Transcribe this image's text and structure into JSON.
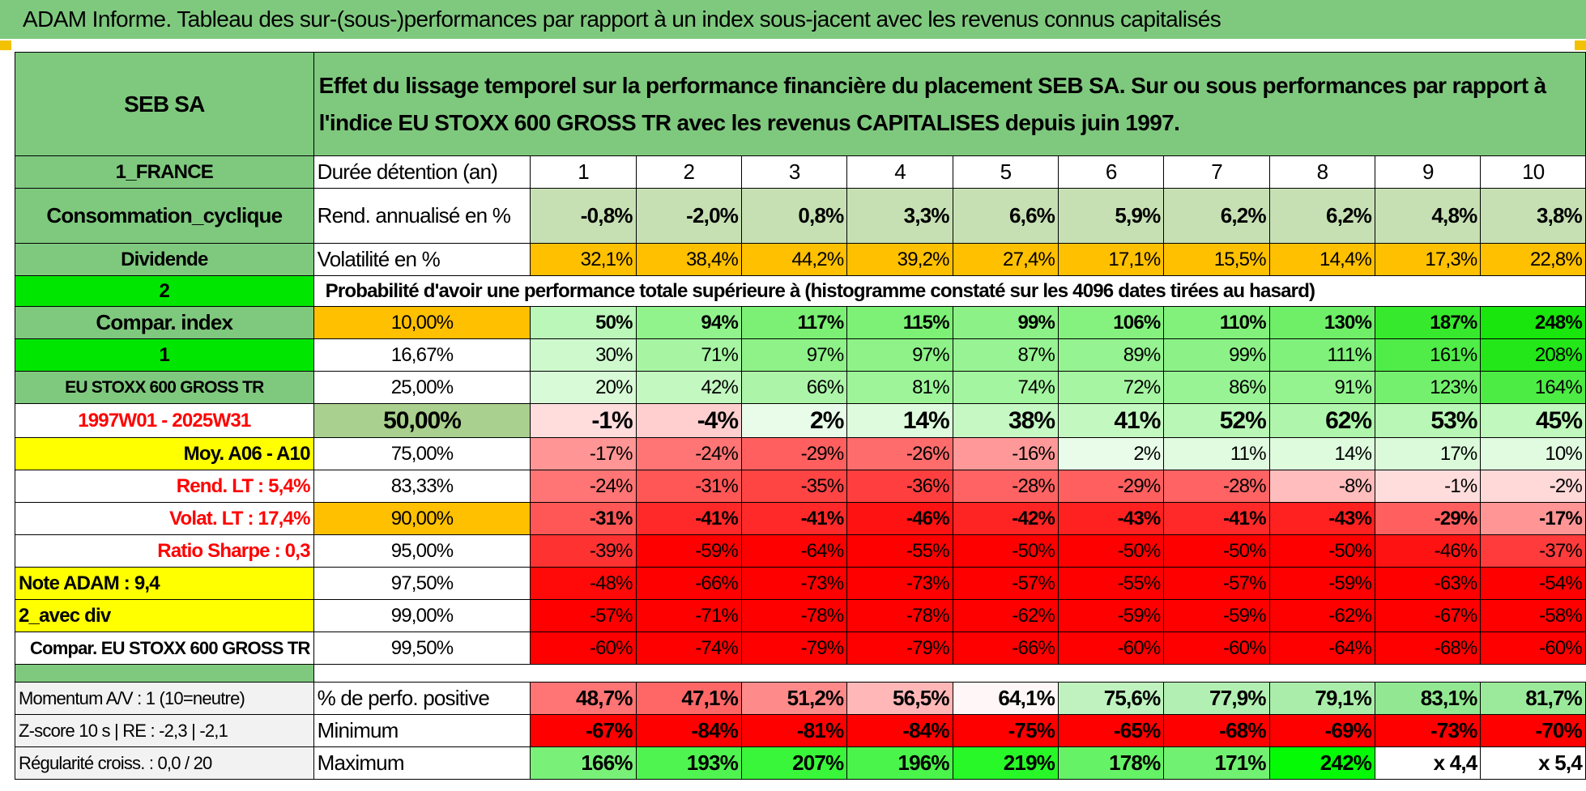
{
  "banner_title": "ADAM Informe. Tableau des sur-(sous-)performances par rapport à un index sous-jacent avec les revenus connus capitalisés",
  "left": {
    "company": "SEB SA",
    "country": "1_FRANCE",
    "sector": "Consommation_cyclique",
    "dividend_label": "Dividende",
    "index_count": "2",
    "compar_index": "Compar. index",
    "index_num": "1",
    "index_name": "EU STOXX 600 GROSS TR",
    "period": "1997W01 - 2025W31",
    "moy": "Moy. A06 - A10",
    "rend_lt": "Rend. LT :   5,4%",
    "volat_lt": "Volat. LT :   17,4%",
    "sharpe": "Ratio Sharpe :    0,3",
    "note": "Note ADAM : 9,4",
    "avec_div": "2_avec div",
    "compar_full": "Compar. EU STOXX 600 GROSS TR",
    "momentum": "Momentum A/V : 1 (10=neutre)",
    "zscore": "Z-score 10 s | RE : -2,3 | -2,1",
    "regularite": "Régularité croiss. : 0,0 / 20"
  },
  "description": "Effet du lissage temporel sur la performance financière du placement SEB SA. Sur ou sous performances par rapport à l'indice EU STOXX 600 GROSS TR avec les revenus CAPITALISES depuis juin 1997.",
  "row_labels": {
    "duree": "Durée détention (an)",
    "rend": "Rend. annualisé en %",
    "vol": "Volatilité en %",
    "prob": "Probabilité d'avoir une performance totale supérieure à (histogramme constaté sur les 4096 dates tirées au hasard)",
    "pos": "% de perfo. positive",
    "min": "Minimum",
    "max": "Maximum"
  },
  "years": [
    "1",
    "2",
    "3",
    "4",
    "5",
    "6",
    "7",
    "8",
    "9",
    "10"
  ],
  "rend": [
    "-0,8%",
    "-2,0%",
    "0,8%",
    "3,3%",
    "6,6%",
    "5,9%",
    "6,2%",
    "6,2%",
    "4,8%",
    "3,8%"
  ],
  "vol": [
    "32,1%",
    "38,4%",
    "44,2%",
    "39,2%",
    "27,4%",
    "17,1%",
    "15,5%",
    "14,4%",
    "17,3%",
    "22,8%"
  ],
  "percentiles": [
    {
      "p": "10,00%",
      "v": [
        "50%",
        "94%",
        "117%",
        "115%",
        "99%",
        "106%",
        "110%",
        "130%",
        "187%",
        "248%"
      ]
    },
    {
      "p": "16,67%",
      "v": [
        "30%",
        "71%",
        "97%",
        "97%",
        "87%",
        "89%",
        "99%",
        "111%",
        "161%",
        "208%"
      ]
    },
    {
      "p": "25,00%",
      "v": [
        "20%",
        "42%",
        "66%",
        "81%",
        "74%",
        "72%",
        "86%",
        "91%",
        "123%",
        "164%"
      ]
    },
    {
      "p": "50,00%",
      "v": [
        "-1%",
        "-4%",
        "2%",
        "14%",
        "38%",
        "41%",
        "52%",
        "62%",
        "53%",
        "45%"
      ]
    },
    {
      "p": "75,00%",
      "v": [
        "-17%",
        "-24%",
        "-29%",
        "-26%",
        "-16%",
        "2%",
        "11%",
        "14%",
        "17%",
        "10%"
      ]
    },
    {
      "p": "83,33%",
      "v": [
        "-24%",
        "-31%",
        "-35%",
        "-36%",
        "-28%",
        "-29%",
        "-28%",
        "-8%",
        "-1%",
        "-2%"
      ]
    },
    {
      "p": "90,00%",
      "v": [
        "-31%",
        "-41%",
        "-41%",
        "-46%",
        "-42%",
        "-43%",
        "-41%",
        "-43%",
        "-29%",
        "-17%"
      ]
    },
    {
      "p": "95,00%",
      "v": [
        "-39%",
        "-59%",
        "-64%",
        "-55%",
        "-50%",
        "-50%",
        "-50%",
        "-50%",
        "-46%",
        "-37%"
      ]
    },
    {
      "p": "97,50%",
      "v": [
        "-48%",
        "-66%",
        "-73%",
        "-73%",
        "-57%",
        "-55%",
        "-57%",
        "-59%",
        "-63%",
        "-54%"
      ]
    },
    {
      "p": "99,00%",
      "v": [
        "-57%",
        "-71%",
        "-78%",
        "-78%",
        "-62%",
        "-59%",
        "-59%",
        "-62%",
        "-67%",
        "-58%"
      ]
    },
    {
      "p": "99,50%",
      "v": [
        "-60%",
        "-74%",
        "-79%",
        "-79%",
        "-66%",
        "-60%",
        "-60%",
        "-64%",
        "-68%",
        "-60%"
      ]
    }
  ],
  "pos": [
    "48,7%",
    "47,1%",
    "51,2%",
    "56,5%",
    "64,1%",
    "75,6%",
    "77,9%",
    "79,1%",
    "83,1%",
    "81,7%"
  ],
  "min": [
    "-67%",
    "-84%",
    "-81%",
    "-84%",
    "-75%",
    "-65%",
    "-68%",
    "-69%",
    "-73%",
    "-70%"
  ],
  "max": [
    "166%",
    "193%",
    "207%",
    "196%",
    "219%",
    "178%",
    "171%",
    "242%",
    "x 4,4",
    "x 5,4"
  ],
  "colors": {
    "header_green": "#7fc97f",
    "bright_green": "#00e600",
    "yellow": "#ffff00",
    "orange": "#ffc000",
    "olive_green": "#a9d08e",
    "red_text": "#ff0000"
  }
}
